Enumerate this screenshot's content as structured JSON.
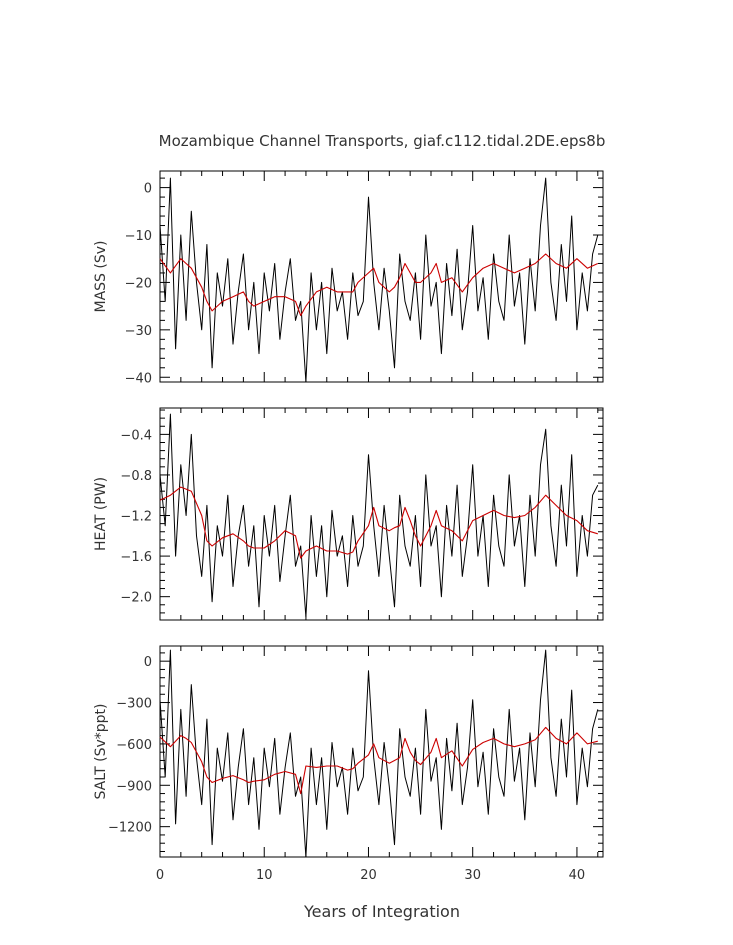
{
  "title": "Mozambique Channel Transports, giaf.c112.tidal.2DE.eps8b",
  "xlabel": "Years of Integration",
  "chart_data": [
    {
      "type": "line",
      "ylabel": "MASS (Sv)",
      "xlim": [
        0,
        42.5
      ],
      "ylim": [
        -41,
        3.5
      ],
      "yticks": [
        0,
        -10,
        -20,
        -30,
        -40
      ],
      "ytick_labels": [
        "0",
        "−10",
        "−20",
        "−30",
        "−40"
      ],
      "series": [
        {
          "color": "#000000",
          "x": [
            0.0,
            0.5,
            1.0,
            1.5,
            2.0,
            2.5,
            3.0,
            3.5,
            4.0,
            4.5,
            5.0,
            5.5,
            6.0,
            6.5,
            7.0,
            7.5,
            8.0,
            8.5,
            9.0,
            9.5,
            10.0,
            10.5,
            11.0,
            11.5,
            12.0,
            12.5,
            13.0,
            13.5,
            14.0,
            14.5,
            15.0,
            15.5,
            16.0,
            16.5,
            17.0,
            17.5,
            18.0,
            18.5,
            19.0,
            19.5,
            20.0,
            20.5,
            21.0,
            21.5,
            22.0,
            22.5,
            23.0,
            23.5,
            24.0,
            24.5,
            25.0,
            25.5,
            26.0,
            26.5,
            27.0,
            27.5,
            28.0,
            28.5,
            29.0,
            29.5,
            30.0,
            30.5,
            31.0,
            31.5,
            32.0,
            32.5,
            33.0,
            33.5,
            34.0,
            34.5,
            35.0,
            35.5,
            36.0,
            36.5,
            37.0,
            37.5,
            38.0,
            38.5,
            39.0,
            39.5,
            40.0,
            40.5,
            41.0,
            41.5,
            42.0
          ],
          "y": [
            -8,
            -24,
            2,
            -34,
            -10,
            -28,
            -5,
            -20,
            -30,
            -12,
            -38,
            -18,
            -25,
            -15,
            -33,
            -22,
            -14,
            -30,
            -20,
            -35,
            -18,
            -26,
            -16,
            -32,
            -22,
            -15,
            -28,
            -24,
            -41,
            -18,
            -30,
            -20,
            -35,
            -17,
            -26,
            -22,
            -32,
            -18,
            -27,
            -24,
            -2,
            -20,
            -30,
            -17,
            -26,
            -38,
            -14,
            -24,
            -28,
            -18,
            -32,
            -10,
            -25,
            -20,
            -35,
            -16,
            -27,
            -13,
            -30,
            -22,
            -8,
            -26,
            -19,
            -32,
            -14,
            -24,
            -28,
            -10,
            -25,
            -18,
            -33,
            -15,
            -26,
            -8,
            2,
            -20,
            -28,
            -12,
            -24,
            -6,
            -30,
            -18,
            -26,
            -14,
            -10
          ]
        },
        {
          "color": "#cc0000",
          "x": [
            0.0,
            1.0,
            2.0,
            2.5,
            3.0,
            4.0,
            4.5,
            5.0,
            6.0,
            7.0,
            8.0,
            8.5,
            9.0,
            10.0,
            11.0,
            12.0,
            13.0,
            13.5,
            14.0,
            15.0,
            16.0,
            17.0,
            18.0,
            18.5,
            19.0,
            20.0,
            20.5,
            21.0,
            22.0,
            22.5,
            23.0,
            23.5,
            24.0,
            24.5,
            25.0,
            26.0,
            26.5,
            27.0,
            28.0,
            29.0,
            30.0,
            31.0,
            32.0,
            33.0,
            34.0,
            35.0,
            36.0,
            37.0,
            38.0,
            39.0,
            40.0,
            41.0,
            42.0
          ],
          "y": [
            -15,
            -18,
            -15,
            -16,
            -17,
            -21,
            -24,
            -26,
            -24,
            -23,
            -22,
            -24,
            -25,
            -24,
            -23,
            -23,
            -24,
            -27,
            -25,
            -22,
            -21,
            -22,
            -22,
            -22,
            -20,
            -18,
            -17,
            -20,
            -22,
            -21,
            -19,
            -16,
            -18,
            -20,
            -20,
            -18,
            -16,
            -20,
            -19,
            -22,
            -19,
            -17,
            -16,
            -17,
            -18,
            -17,
            -16,
            -14,
            -16,
            -17,
            -15,
            -17,
            -16
          ]
        }
      ]
    },
    {
      "type": "line",
      "ylabel": "HEAT (PW)",
      "xlim": [
        0,
        42.5
      ],
      "ylim": [
        -2.23,
        -0.14
      ],
      "yticks": [
        -0.4,
        -0.8,
        -1.2,
        -1.6,
        -2.0
      ],
      "ytick_labels": [
        "−0.4",
        "−0.8",
        "−1.2",
        "−1.6",
        "−2.0"
      ],
      "series": [
        {
          "color": "#000000",
          "x": [
            0.0,
            0.5,
            1.0,
            1.5,
            2.0,
            2.5,
            3.0,
            3.5,
            4.0,
            4.5,
            5.0,
            5.5,
            6.0,
            6.5,
            7.0,
            7.5,
            8.0,
            8.5,
            9.0,
            9.5,
            10.0,
            10.5,
            11.0,
            11.5,
            12.0,
            12.5,
            13.0,
            13.5,
            14.0,
            14.5,
            15.0,
            15.5,
            16.0,
            16.5,
            17.0,
            17.5,
            18.0,
            18.5,
            19.0,
            19.5,
            20.0,
            20.5,
            21.0,
            21.5,
            22.0,
            22.5,
            23.0,
            23.5,
            24.0,
            24.5,
            25.0,
            25.5,
            26.0,
            26.5,
            27.0,
            27.5,
            28.0,
            28.5,
            29.0,
            29.5,
            30.0,
            30.5,
            31.0,
            31.5,
            32.0,
            32.5,
            33.0,
            33.5,
            34.0,
            34.5,
            35.0,
            35.5,
            36.0,
            36.5,
            37.0,
            37.5,
            38.0,
            38.5,
            39.0,
            39.5,
            40.0,
            40.5,
            41.0,
            41.5,
            42.0
          ],
          "y": [
            -0.8,
            -1.3,
            -0.2,
            -1.6,
            -0.7,
            -1.2,
            -0.4,
            -1.4,
            -1.8,
            -1.1,
            -2.05,
            -1.3,
            -1.6,
            -1.0,
            -1.9,
            -1.4,
            -1.1,
            -1.7,
            -1.3,
            -2.1,
            -1.2,
            -1.6,
            -1.1,
            -1.85,
            -1.4,
            -1.0,
            -1.7,
            -1.5,
            -2.2,
            -1.2,
            -1.8,
            -1.3,
            -2.0,
            -1.15,
            -1.6,
            -1.4,
            -1.9,
            -1.2,
            -1.7,
            -1.5,
            -0.6,
            -1.3,
            -1.8,
            -1.1,
            -1.6,
            -2.1,
            -1.0,
            -1.5,
            -1.7,
            -1.2,
            -1.9,
            -0.8,
            -1.5,
            -1.3,
            -2.0,
            -1.1,
            -1.6,
            -0.9,
            -1.8,
            -1.4,
            -0.7,
            -1.6,
            -1.2,
            -1.9,
            -1.0,
            -1.5,
            -1.7,
            -0.8,
            -1.5,
            -1.2,
            -1.9,
            -1.0,
            -1.6,
            -0.7,
            -0.35,
            -1.3,
            -1.7,
            -0.9,
            -1.5,
            -0.6,
            -1.8,
            -1.2,
            -1.6,
            -1.0,
            -0.9
          ]
        },
        {
          "color": "#cc0000",
          "x": [
            0.0,
            1.0,
            2.0,
            2.5,
            3.0,
            4.0,
            4.5,
            5.0,
            6.0,
            7.0,
            8.0,
            8.5,
            9.0,
            10.0,
            11.0,
            12.0,
            13.0,
            13.5,
            14.0,
            15.0,
            16.0,
            17.0,
            18.0,
            18.5,
            19.0,
            20.0,
            20.5,
            21.0,
            22.0,
            22.5,
            23.0,
            23.5,
            24.0,
            24.5,
            25.0,
            26.0,
            26.5,
            27.0,
            28.0,
            29.0,
            30.0,
            31.0,
            32.0,
            33.0,
            34.0,
            35.0,
            36.0,
            37.0,
            38.0,
            39.0,
            40.0,
            41.0,
            42.0
          ],
          "y": [
            -1.05,
            -1.0,
            -0.92,
            -0.94,
            -0.96,
            -1.2,
            -1.45,
            -1.5,
            -1.42,
            -1.38,
            -1.45,
            -1.5,
            -1.52,
            -1.52,
            -1.45,
            -1.35,
            -1.4,
            -1.62,
            -1.55,
            -1.5,
            -1.55,
            -1.55,
            -1.58,
            -1.56,
            -1.45,
            -1.3,
            -1.12,
            -1.3,
            -1.35,
            -1.32,
            -1.3,
            -1.12,
            -1.25,
            -1.4,
            -1.5,
            -1.3,
            -1.15,
            -1.3,
            -1.35,
            -1.45,
            -1.25,
            -1.2,
            -1.15,
            -1.2,
            -1.22,
            -1.2,
            -1.12,
            -1.0,
            -1.1,
            -1.2,
            -1.25,
            -1.35,
            -1.38
          ]
        }
      ]
    },
    {
      "type": "line",
      "ylabel": "SALT (Sv*ppt)",
      "xlim": [
        0,
        42.5
      ],
      "ylim": [
        -1420,
        110
      ],
      "yticks": [
        0,
        -300,
        -600,
        -900,
        -1200
      ],
      "ytick_labels": [
        "0",
        "−300",
        "−600",
        "−900",
        "−1200"
      ],
      "series": [
        {
          "color": "#000000",
          "x": [
            0.0,
            0.5,
            1.0,
            1.5,
            2.0,
            2.5,
            3.0,
            3.5,
            4.0,
            4.5,
            5.0,
            5.5,
            6.0,
            6.5,
            7.0,
            7.5,
            8.0,
            8.5,
            9.0,
            9.5,
            10.0,
            10.5,
            11.0,
            11.5,
            12.0,
            12.5,
            13.0,
            13.5,
            14.0,
            14.5,
            15.0,
            15.5,
            16.0,
            16.5,
            17.0,
            17.5,
            18.0,
            18.5,
            19.0,
            19.5,
            20.0,
            20.5,
            21.0,
            21.5,
            22.0,
            22.5,
            23.0,
            23.5,
            24.0,
            24.5,
            25.0,
            25.5,
            26.0,
            26.5,
            27.0,
            27.5,
            28.0,
            28.5,
            29.0,
            29.5,
            30.0,
            30.5,
            31.0,
            31.5,
            32.0,
            32.5,
            33.0,
            33.5,
            34.0,
            34.5,
            35.0,
            35.5,
            36.0,
            36.5,
            37.0,
            37.5,
            38.0,
            38.5,
            39.0,
            39.5,
            40.0,
            40.5,
            41.0,
            41.5,
            42.0
          ],
          "y": [
            -280,
            -840,
            80,
            -1180,
            -350,
            -980,
            -170,
            -700,
            -1040,
            -420,
            -1330,
            -630,
            -870,
            -520,
            -1150,
            -770,
            -490,
            -1040,
            -700,
            -1220,
            -630,
            -910,
            -560,
            -1110,
            -770,
            -520,
            -980,
            -840,
            -1420,
            -630,
            -1040,
            -700,
            -1220,
            -590,
            -910,
            -770,
            -1110,
            -630,
            -940,
            -840,
            -70,
            -700,
            -1040,
            -590,
            -910,
            -1330,
            -490,
            -840,
            -980,
            -630,
            -1110,
            -350,
            -870,
            -700,
            -1220,
            -560,
            -940,
            -450,
            -1040,
            -770,
            -280,
            -910,
            -660,
            -1110,
            -490,
            -840,
            -980,
            -350,
            -870,
            -630,
            -1150,
            -520,
            -910,
            -280,
            80,
            -700,
            -980,
            -420,
            -840,
            -210,
            -1040,
            -630,
            -910,
            -490,
            -350
          ]
        },
        {
          "color": "#cc0000",
          "x": [
            0.0,
            1.0,
            2.0,
            2.5,
            3.0,
            4.0,
            4.5,
            5.0,
            6.0,
            7.0,
            8.0,
            8.5,
            9.0,
            10.0,
            11.0,
            12.0,
            13.0,
            13.5,
            14.0,
            15.0,
            16.0,
            17.0,
            18.0,
            18.5,
            19.0,
            20.0,
            20.5,
            21.0,
            22.0,
            22.5,
            23.0,
            23.5,
            24.0,
            24.5,
            25.0,
            26.0,
            26.5,
            27.0,
            28.0,
            29.0,
            30.0,
            31.0,
            32.0,
            33.0,
            34.0,
            35.0,
            36.0,
            37.0,
            38.0,
            39.0,
            40.0,
            41.0,
            42.0
          ],
          "y": [
            -550,
            -620,
            -540,
            -560,
            -590,
            -730,
            -840,
            -880,
            -850,
            -830,
            -860,
            -880,
            -870,
            -860,
            -820,
            -800,
            -820,
            -960,
            -760,
            -770,
            -760,
            -760,
            -790,
            -780,
            -740,
            -680,
            -600,
            -700,
            -740,
            -720,
            -700,
            -560,
            -660,
            -720,
            -750,
            -660,
            -560,
            -700,
            -650,
            -760,
            -640,
            -590,
            -560,
            -600,
            -620,
            -600,
            -570,
            -480,
            -560,
            -600,
            -520,
            -600,
            -580
          ]
        }
      ]
    }
  ],
  "xaxis": {
    "xticks": [
      0,
      10,
      20,
      30,
      40
    ],
    "xtick_labels": [
      "0",
      "10",
      "20",
      "30",
      "40"
    ]
  }
}
